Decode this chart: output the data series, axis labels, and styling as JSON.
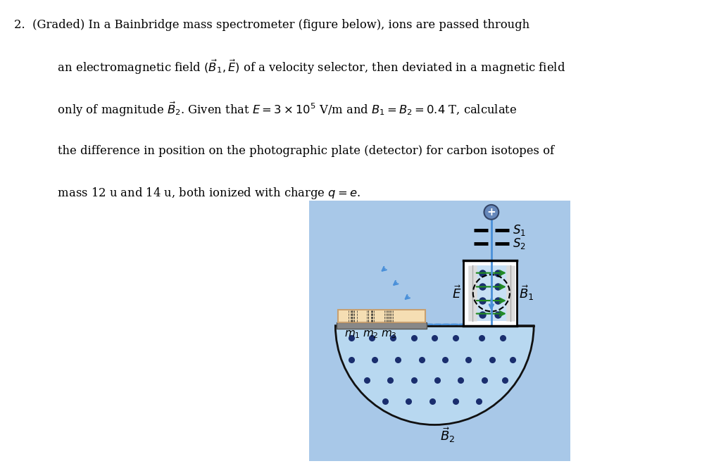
{
  "bg_color": "#ffffff",
  "light_blue_bg": "#a8c8e8",
  "lighter_blue_semi": "#b8d8f0",
  "vel_box_bg": "#d0e8f8",
  "vel_inner_bg": "#c8e0f4",
  "plate_color": "#f5deb3",
  "dark_blue_dot": "#1a2e6e",
  "arrow_blue": "#4a90d9",
  "green_arrow": "#228B22",
  "gray_plate": "#888888",
  "ion_ball_color": "#6688bb",
  "ion_ball_edge": "#334466",
  "text_color": "#000000",
  "line_color": "#111111"
}
